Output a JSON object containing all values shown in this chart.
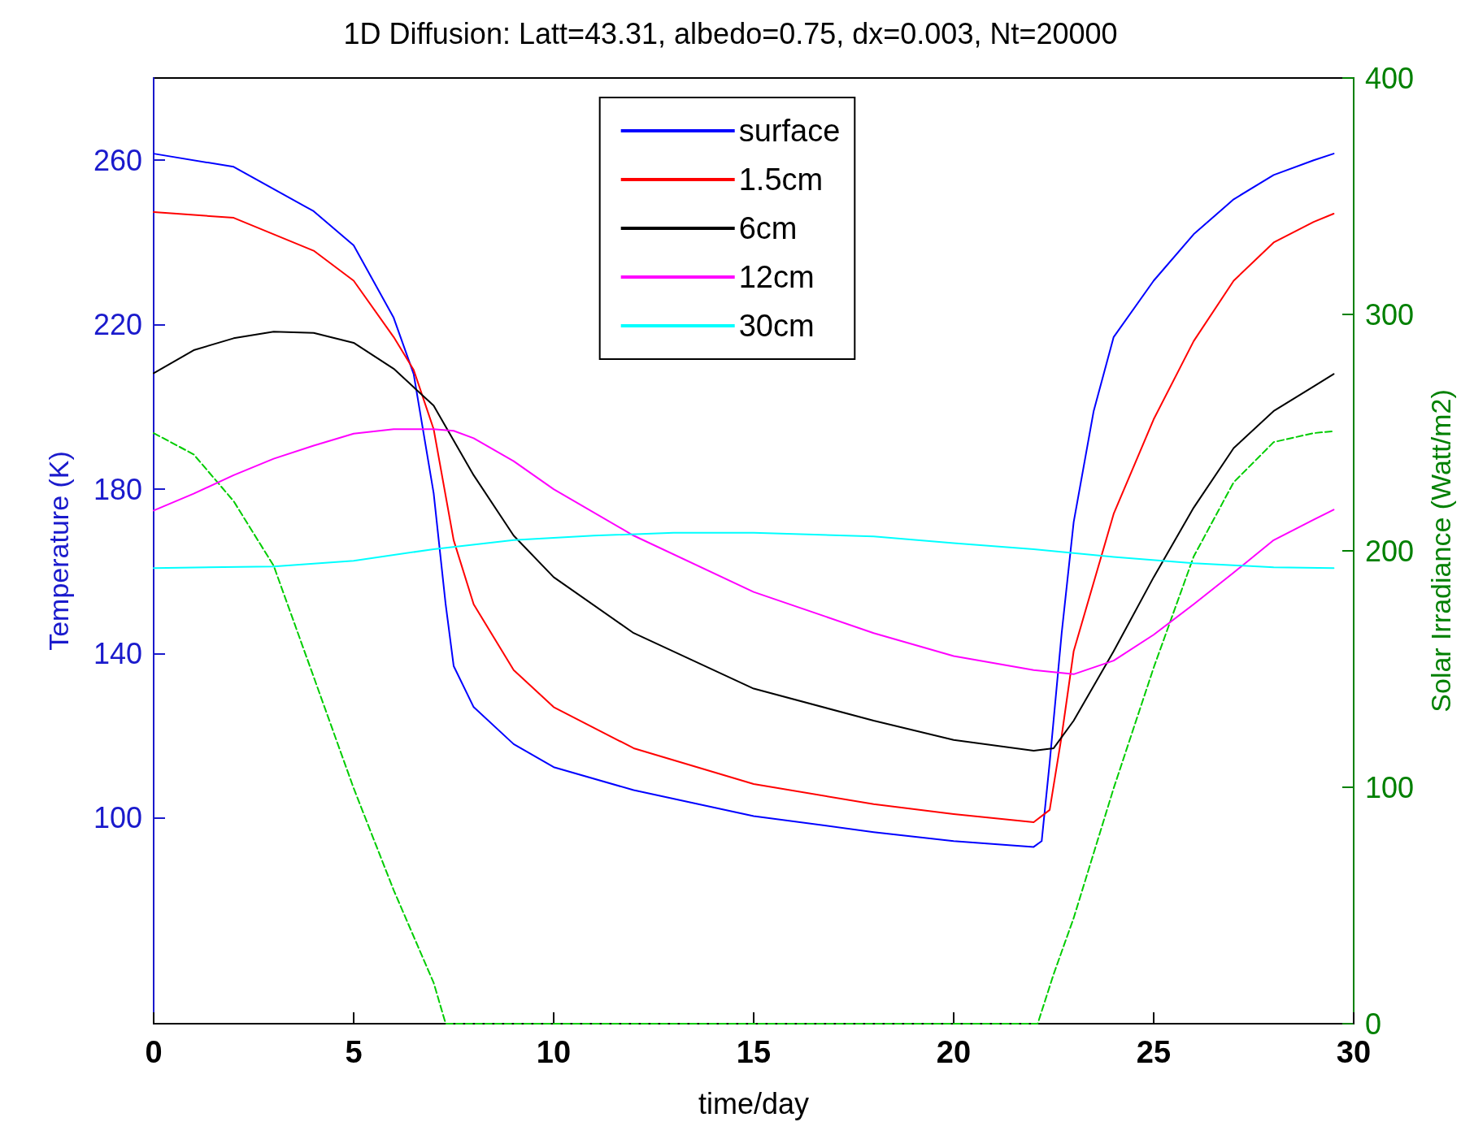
{
  "chart_data": {
    "type": "line",
    "title": "1D Diffusion: Latt=43.31, albedo=0.75, dx=0.003, Nt=20000",
    "xlabel": "time/day",
    "ylabel": "Temperature (K)",
    "y2label": "Solar Irradiance (Watt/m2)",
    "xlim": [
      0,
      30
    ],
    "xticks": [
      0,
      5,
      10,
      15,
      20,
      25,
      30
    ],
    "ylim": [
      50,
      280
    ],
    "yticks": [
      100,
      140,
      180,
      220,
      260
    ],
    "y2lim": [
      0,
      400
    ],
    "y2ticks": [
      0,
      100,
      200,
      300,
      400
    ],
    "legend": "top",
    "grid": false,
    "marker": "none",
    "series": [
      {
        "name": "surface",
        "color": "#0000ff",
        "x": [
          0,
          2,
          4,
          5,
          6,
          6.5,
          7,
          7.3,
          7.5,
          8,
          9,
          10,
          12,
          15,
          18,
          20,
          22,
          22.2,
          22.4,
          22.7,
          23,
          23.5,
          24,
          25,
          26,
          27,
          28,
          29,
          29.5
        ],
        "values": [
          261.6,
          258.4,
          247.6,
          239.3,
          221.7,
          208,
          179,
          152,
          137,
          127,
          118,
          112.4,
          106.8,
          100.5,
          96.6,
          94.4,
          93,
          94.4,
          113.5,
          145,
          172,
          199,
          217,
          230.7,
          242,
          250.5,
          256.4,
          260,
          261.6
        ]
      },
      {
        "name": "1.5cm",
        "color": "#ff0000",
        "x": [
          0,
          2,
          4,
          5,
          6,
          6.5,
          7,
          7.5,
          8,
          9,
          10,
          12,
          15,
          18,
          20,
          22,
          22.4,
          22.7,
          23,
          24,
          25,
          26,
          27,
          28,
          29,
          29.5
        ],
        "values": [
          247.4,
          246,
          238,
          230.7,
          217,
          209,
          194.6,
          167.6,
          152,
          136,
          127,
          117,
          108.3,
          103.4,
          101,
          99,
          102,
          120,
          140.6,
          174,
          197,
          216,
          230.7,
          240,
          245,
          247
        ]
      },
      {
        "name": "6cm",
        "color": "#000000",
        "x": [
          0,
          1,
          2,
          3,
          4,
          5,
          6,
          7,
          8,
          9,
          10,
          12,
          15,
          18,
          20,
          22,
          22.5,
          23,
          24,
          25,
          26,
          27,
          28,
          29,
          29.5
        ],
        "values": [
          208.2,
          213.8,
          216.7,
          218.3,
          218,
          215.6,
          209.3,
          200.3,
          183.4,
          168.7,
          158.6,
          145,
          131.5,
          123.7,
          119,
          116.4,
          117,
          123.7,
          140.6,
          158.6,
          175.5,
          190,
          199,
          205,
          208
        ]
      },
      {
        "name": "12cm",
        "color": "#ff00ff",
        "x": [
          0,
          1,
          2,
          3,
          4,
          5,
          6,
          7,
          7.5,
          8,
          9,
          10,
          12,
          15,
          18,
          20,
          22,
          23,
          24,
          25,
          26,
          27,
          28,
          29,
          29.5
        ],
        "values": [
          174.8,
          178.9,
          183.4,
          187.4,
          190.6,
          193.5,
          194.6,
          194.6,
          194.2,
          192.4,
          186.8,
          180,
          168.7,
          155,
          145,
          139.4,
          136,
          135,
          138.3,
          144.6,
          152,
          159.7,
          167.6,
          172.6,
          175
        ]
      },
      {
        "name": "30cm",
        "color": "#00ffff",
        "x": [
          0,
          3,
          5,
          7,
          9,
          11,
          13,
          15,
          18,
          20,
          22,
          24,
          26,
          28,
          29.5
        ],
        "values": [
          160.8,
          161.2,
          162.6,
          165.4,
          167.6,
          168.7,
          169.4,
          169.4,
          168.5,
          166.9,
          165.4,
          163.5,
          162,
          161,
          160.8
        ]
      },
      {
        "color": "#00cc00",
        "axis": "y2",
        "line_style": "dashed",
        "x": [
          0,
          1,
          2,
          3,
          4,
          5,
          6,
          7,
          7.3,
          10,
          15,
          20,
          22.1,
          22.5,
          23,
          24,
          25,
          26,
          27,
          28,
          29,
          29.5
        ],
        "values": [
          249.8,
          240.8,
          221,
          193.7,
          146.7,
          99.6,
          56.5,
          17.3,
          0,
          0,
          0,
          0,
          0,
          21,
          44.7,
          99.6,
          150.6,
          197.6,
          229,
          246,
          249.8,
          250.6
        ]
      }
    ]
  }
}
